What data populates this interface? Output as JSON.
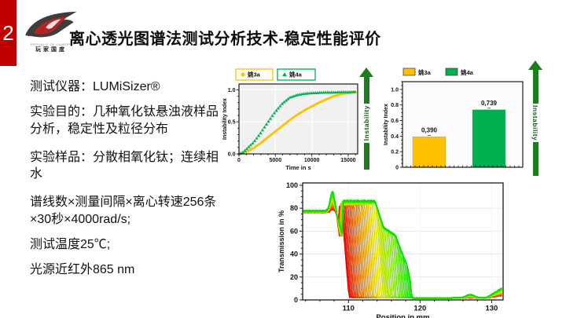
{
  "slide": {
    "page_number": "2",
    "title": "离心透光图谱法测试分析技术-稳定性能评价",
    "logo": {
      "caption_line1": "REPUBLIC OF GAMERS",
      "caption_line2": "玩家国度"
    }
  },
  "info_panel": {
    "lines": [
      "测试仪器：LUMiSizer®",
      "实验目的：几种氧化钛悬浊液样品分析，稳定性及粒径分布",
      "实验样品：分散相氧化钛；连续相水",
      "谱线数×测量间隔×离心转速256条×30秒×4000rad/s;",
      "测试温度25℃;",
      "光源近红外865 nm"
    ]
  },
  "arrows": {
    "label": "Instability",
    "color": "#1c7d1c"
  },
  "colors": {
    "accent_red": "#C00000",
    "series_orange": "#FFC000",
    "series_green": "#00B050",
    "profile_first": "#FF0000",
    "profile_last": "#00D800"
  },
  "chart_data": [
    {
      "id": "instability-vs-time",
      "type": "scatter",
      "xlabel": "Time in s",
      "ylabel": "Instability Index",
      "xlim": [
        0,
        16300
      ],
      "ylim": [
        0,
        1.09
      ],
      "xticks": [
        0,
        5000,
        10000,
        15000
      ],
      "xtick_labels": [
        "0",
        "5000",
        "10000",
        "15000"
      ],
      "yticks": [
        0,
        0.5,
        1.0
      ],
      "ytick_labels": [
        "0.0",
        "0.5",
        "1.0"
      ],
      "legend_position": "top",
      "grid": true,
      "series": [
        {
          "name": "姚3a",
          "marker": "circle",
          "color": "#FFC000",
          "x": [
            0,
            500,
            1000,
            2000,
            3000,
            4000,
            5000,
            6000,
            7000,
            8000,
            9000,
            10000,
            11000,
            12000,
            13000,
            14000,
            15000,
            16000
          ],
          "y": [
            0,
            0.01,
            0.03,
            0.09,
            0.17,
            0.26,
            0.35,
            0.44,
            0.53,
            0.61,
            0.68,
            0.74,
            0.8,
            0.85,
            0.9,
            0.93,
            0.95,
            0.96
          ]
        },
        {
          "name": "姚4a",
          "marker": "triangle",
          "color": "#00B050",
          "x": [
            0,
            500,
            1000,
            2000,
            3000,
            4000,
            5000,
            6000,
            7000,
            8000,
            9000,
            10000,
            11000,
            12000,
            13000,
            14000,
            15000,
            16000
          ],
          "y": [
            0,
            0.02,
            0.07,
            0.18,
            0.33,
            0.5,
            0.66,
            0.79,
            0.88,
            0.92,
            0.94,
            0.95,
            0.955,
            0.96,
            0.96,
            0.965,
            0.965,
            0.97
          ]
        }
      ]
    },
    {
      "id": "instability-index-bars",
      "type": "bar",
      "categories": [
        "姚3a",
        "姚4a"
      ],
      "values": [
        0.39,
        0.739
      ],
      "value_labels": [
        "0,390",
        "0,739"
      ],
      "bar_colors": [
        "#FFC000",
        "#00B050"
      ],
      "ylabel": "Instability Index",
      "ylim": [
        0,
        1.1
      ],
      "yticks": [
        0,
        0.2,
        0.4,
        0.6,
        0.8,
        1.0
      ],
      "ytick_labels": [
        "0",
        "0.2",
        "0.4",
        "0.6",
        "0.8",
        "1.0"
      ],
      "legend": [
        "姚3a",
        "姚4a"
      ],
      "legend_position": "top"
    },
    {
      "id": "transmission-profiles",
      "type": "line",
      "xlabel": "Position in mm",
      "ylabel": "Transmission in %",
      "xlim": [
        103.6,
        131.6
      ],
      "ylim": [
        0,
        100
      ],
      "xticks": [
        110,
        120,
        130
      ],
      "xtick_labels": [
        "110",
        "120",
        "130"
      ],
      "yticks": [
        0,
        20,
        40,
        60,
        80,
        100
      ],
      "profile_count": 40,
      "time_color_first": "#FF0000",
      "time_color_last": "#00D800",
      "first_profile": {
        "x": [
          103.6,
          106,
          107.75,
          108.35,
          108.72,
          109.0,
          109.6,
          110.5,
          114,
          118,
          119,
          124,
          127,
          129,
          131.5
        ],
        "y": [
          77,
          77,
          80,
          75,
          55,
          81,
          40,
          3,
          2,
          2,
          2,
          1.6,
          2.5,
          2,
          4
        ]
      },
      "last_profile": {
        "x": [
          103.6,
          106,
          107.75,
          108.35,
          109.27,
          109.6,
          111,
          113.6,
          114.9,
          116.6,
          117.1,
          118.2,
          118.8,
          119.6,
          121,
          124,
          127,
          129.3,
          131.5
        ],
        "y": [
          78,
          78,
          94,
          75,
          55,
          86,
          86,
          86,
          63,
          56,
          47,
          30,
          13,
          6,
          4,
          3.5,
          7,
          4,
          11
        ]
      },
      "model": {
        "drop_x": [
          108.72,
          109.27
        ],
        "cleared_level": [
          81.5,
          86.5
        ],
        "front_start_offset": 0.3,
        "front_span": 9.1,
        "left_peak": [
          79,
          94
        ],
        "fall_slope": 75,
        "shoulder_start": [
          108.35,
          75
        ],
        "shoulder_end_level": 55,
        "cap_envelope": [
          [
            103.6,
            88
          ],
          [
            113.6,
            88
          ],
          [
            114.9,
            63
          ],
          [
            116.6,
            56
          ],
          [
            117.1,
            47
          ],
          [
            118.2,
            30
          ],
          [
            118.8,
            13
          ],
          [
            119.6,
            6
          ],
          [
            120.5,
            4.5
          ],
          [
            131.6,
            4.5
          ]
        ]
      }
    }
  ]
}
